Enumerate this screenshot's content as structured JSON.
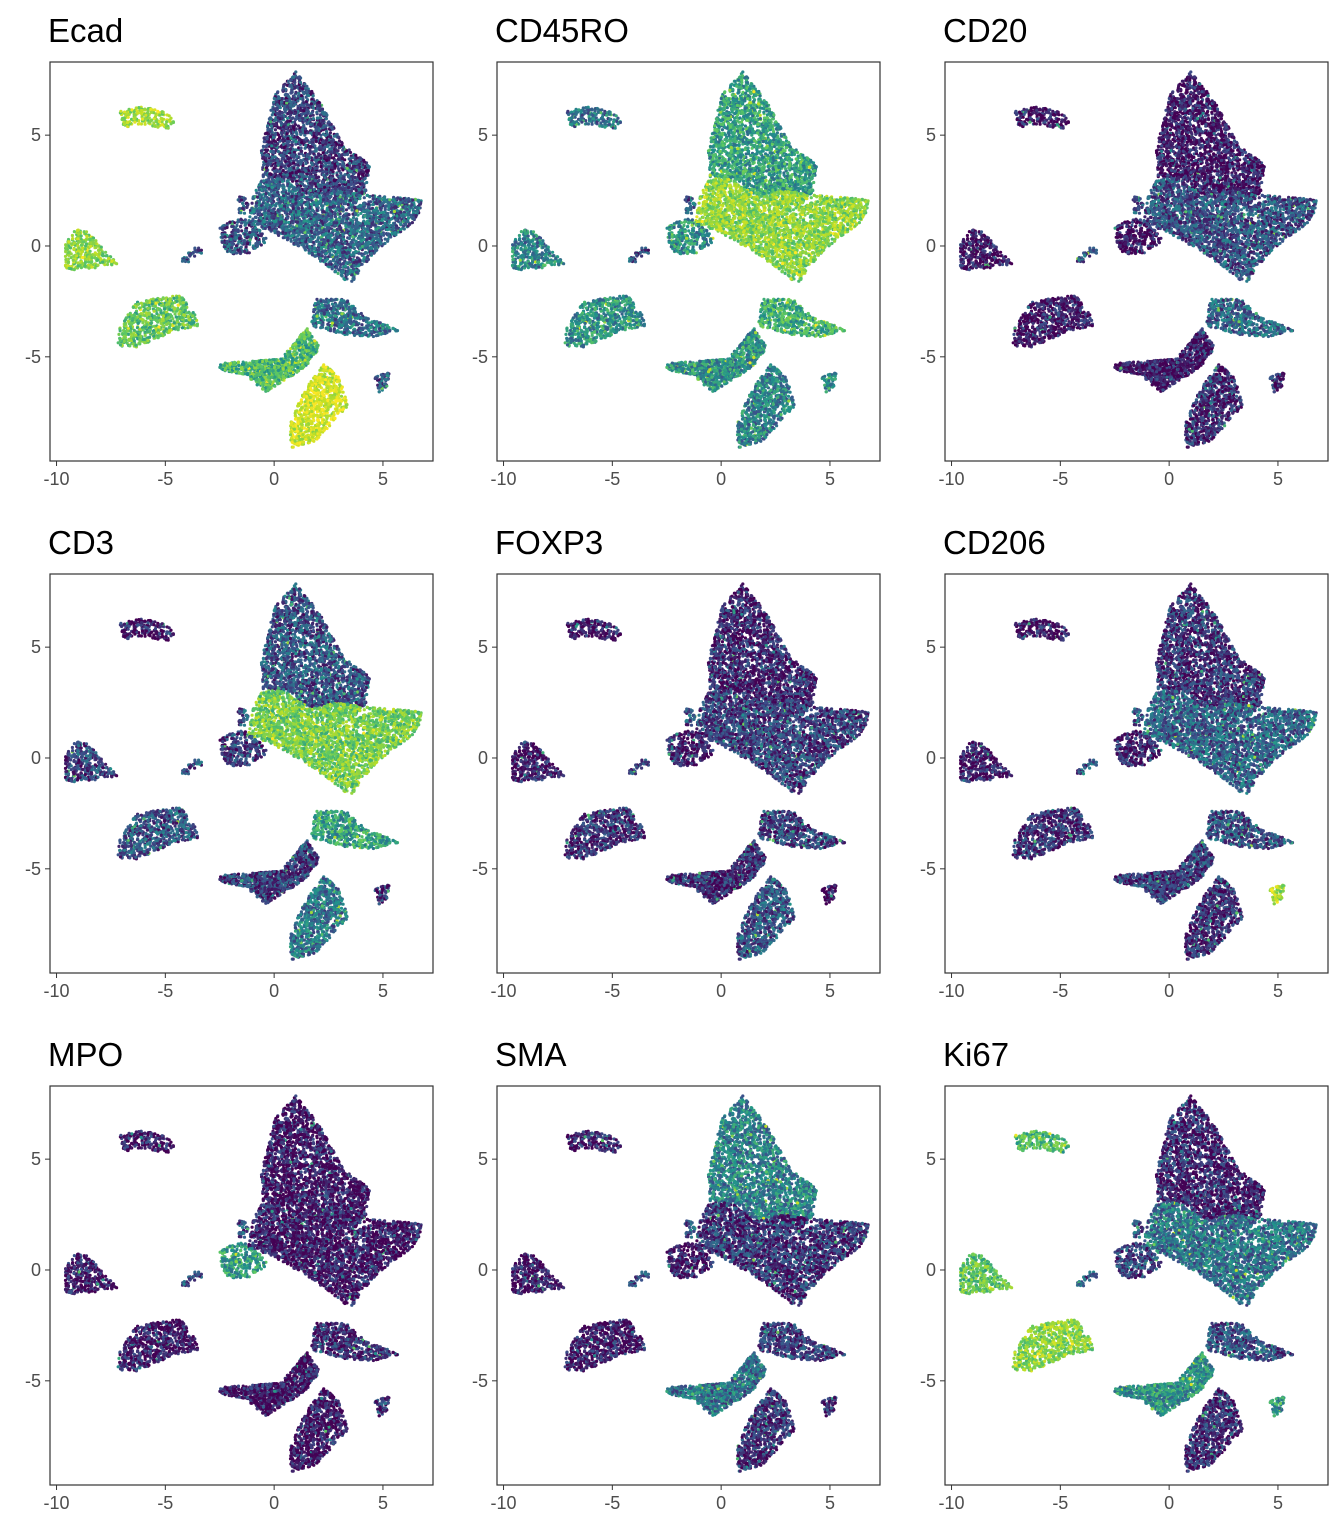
{
  "palette": {
    "viridis_stops": [
      "#440154",
      "#3b528b",
      "#21918c",
      "#5ec962",
      "#bddf26",
      "#fde725"
    ],
    "frame": "#333333",
    "tick_text": "#4d4d4d",
    "background": "#ffffff"
  },
  "chart_data": [
    {
      "type": "scatter",
      "title": "Ecad",
      "xlim": [
        -10.3,
        7.3
      ],
      "ylim": [
        -9.7,
        8.3
      ],
      "x_ticks": [
        "-10",
        "-5",
        "0",
        "5"
      ],
      "x_tick_values": [
        -10,
        -5,
        0,
        5
      ],
      "y_ticks": [
        "5",
        "0",
        "-5"
      ],
      "y_tick_values": [
        5,
        0,
        -5
      ],
      "xlabel": "",
      "ylabel": "",
      "grid": false,
      "legend": "none",
      "cluster_expression": {
        "c1": 0.75,
        "c2": 0.7,
        "c3": 0.6,
        "c4": 0.15,
        "c5": 0.25,
        "c6": 0.2,
        "c7": 0.3,
        "c8": 0.55,
        "c9": 0.85,
        "c10": 0.2
      }
    },
    {
      "type": "scatter",
      "title": "CD45RO",
      "xlim": [
        -10.3,
        7.3
      ],
      "ylim": [
        -9.7,
        8.3
      ],
      "x_ticks": [
        "-10",
        "-5",
        "0",
        "5"
      ],
      "x_tick_values": [
        -10,
        -5,
        0,
        5
      ],
      "y_ticks": [
        "5",
        "0",
        "-5"
      ],
      "y_tick_values": [
        5,
        0,
        -5
      ],
      "xlabel": "",
      "ylabel": "",
      "grid": false,
      "legend": "none",
      "cluster_expression": {
        "c1": 0.3,
        "c2": 0.35,
        "c3": 0.4,
        "c4": 0.45,
        "c5": 0.7,
        "c6": 0.4,
        "c7": 0.5,
        "c8": 0.4,
        "c9": 0.35,
        "c10": 0.35
      }
    },
    {
      "type": "scatter",
      "title": "CD20",
      "xlim": [
        -10.3,
        7.3
      ],
      "ylim": [
        -9.7,
        8.3
      ],
      "x_ticks": [
        "-10",
        "-5",
        "0",
        "5"
      ],
      "x_tick_values": [
        -10,
        -5,
        0,
        5
      ],
      "y_ticks": [
        "5",
        "0",
        "-5"
      ],
      "y_tick_values": [
        5,
        0,
        -5
      ],
      "xlabel": "",
      "ylabel": "",
      "grid": false,
      "legend": "none",
      "cluster_expression": {
        "c1": 0.05,
        "c2": 0.05,
        "c3": 0.05,
        "c4": 0.05,
        "c5": 0.2,
        "c6": 0.05,
        "c7": 0.25,
        "c8": 0.05,
        "c9": 0.1,
        "c10": 0.1
      }
    },
    {
      "type": "scatter",
      "title": "CD3",
      "xlim": [
        -10.3,
        7.3
      ],
      "ylim": [
        -9.7,
        8.3
      ],
      "x_ticks": [
        "-10",
        "-5",
        "0",
        "5"
      ],
      "x_tick_values": [
        -10,
        -5,
        0,
        5
      ],
      "y_ticks": [
        "5",
        "0",
        "-5"
      ],
      "y_tick_values": [
        5,
        0,
        -5
      ],
      "xlabel": "",
      "ylabel": "",
      "grid": false,
      "legend": "none",
      "cluster_expression": {
        "c1": 0.05,
        "c2": 0.15,
        "c3": 0.2,
        "c4": 0.2,
        "c5": 0.65,
        "c6": 0.15,
        "c7": 0.45,
        "c8": 0.15,
        "c9": 0.3,
        "c10": 0.1
      }
    },
    {
      "type": "scatter",
      "title": "FOXP3",
      "xlim": [
        -10.3,
        7.3
      ],
      "ylim": [
        -9.7,
        8.3
      ],
      "x_ticks": [
        "-10",
        "-5",
        "0",
        "5"
      ],
      "x_tick_values": [
        -10,
        -5,
        0,
        5
      ],
      "y_ticks": [
        "5",
        "0",
        "-5"
      ],
      "y_tick_values": [
        5,
        0,
        -5
      ],
      "xlabel": "",
      "ylabel": "",
      "grid": false,
      "legend": "none",
      "cluster_expression": {
        "c1": 0.05,
        "c2": 0.05,
        "c3": 0.12,
        "c4": 0.08,
        "c5": 0.15,
        "c6": 0.05,
        "c7": 0.15,
        "c8": 0.1,
        "c9": 0.2,
        "c10": 0.05
      }
    },
    {
      "type": "scatter",
      "title": "CD206",
      "xlim": [
        -10.3,
        7.3
      ],
      "ylim": [
        -9.7,
        8.3
      ],
      "x_ticks": [
        "-10",
        "-5",
        "0",
        "5"
      ],
      "x_tick_values": [
        -10,
        -5,
        0,
        5
      ],
      "y_ticks": [
        "5",
        "0",
        "-5"
      ],
      "y_tick_values": [
        5,
        0,
        -5
      ],
      "xlabel": "",
      "ylabel": "",
      "grid": false,
      "legend": "none",
      "cluster_expression": {
        "c1": 0.05,
        "c2": 0.05,
        "c3": 0.1,
        "c4": 0.12,
        "c5": 0.25,
        "c6": 0.08,
        "c7": 0.2,
        "c8": 0.15,
        "c9": 0.1,
        "c10": 0.75
      }
    },
    {
      "type": "scatter",
      "title": "MPO",
      "xlim": [
        -10.3,
        7.3
      ],
      "ylim": [
        -9.7,
        8.3
      ],
      "x_ticks": [
        "-10",
        "-5",
        "0",
        "5"
      ],
      "x_tick_values": [
        -10,
        -5,
        0,
        5
      ],
      "y_ticks": [
        "5",
        "0",
        "-5"
      ],
      "y_tick_values": [
        5,
        0,
        -5
      ],
      "xlabel": "",
      "ylabel": "",
      "grid": false,
      "legend": "none",
      "cluster_expression": {
        "c1": 0.05,
        "c2": 0.05,
        "c3": 0.05,
        "c4": 0.05,
        "c5": 0.05,
        "c6": 0.45,
        "c7": 0.1,
        "c8": 0.05,
        "c9": 0.05,
        "c10": 0.15
      }
    },
    {
      "type": "scatter",
      "title": "SMA",
      "xlim": [
        -10.3,
        7.3
      ],
      "ylim": [
        -9.7,
        8.3
      ],
      "x_ticks": [
        "-10",
        "-5",
        "0",
        "5"
      ],
      "x_tick_values": [
        -10,
        -5,
        0,
        5
      ],
      "y_ticks": [
        "5",
        "0",
        "-5"
      ],
      "y_tick_values": [
        5,
        0,
        -5
      ],
      "xlabel": "",
      "ylabel": "",
      "grid": false,
      "legend": "none",
      "cluster_expression": {
        "c1": 0.05,
        "c2": 0.05,
        "c3": 0.05,
        "c4": 0.35,
        "c5": 0.12,
        "c6": 0.05,
        "c7": 0.15,
        "c8": 0.3,
        "c9": 0.12,
        "c10": 0.1
      }
    },
    {
      "type": "scatter",
      "title": "Ki67",
      "xlim": [
        -10.3,
        7.3
      ],
      "ylim": [
        -9.7,
        8.3
      ],
      "x_ticks": [
        "-10",
        "-5",
        "0",
        "5"
      ],
      "x_tick_values": [
        -10,
        -5,
        0,
        5
      ],
      "y_ticks": [
        "5",
        "0",
        "-5"
      ],
      "y_tick_values": [
        5,
        0,
        -5
      ],
      "xlabel": "",
      "ylabel": "",
      "grid": false,
      "legend": "none",
      "cluster_expression": {
        "c1": 0.55,
        "c2": 0.6,
        "c3": 0.7,
        "c4": 0.08,
        "c5": 0.3,
        "c6": 0.15,
        "c7": 0.2,
        "c8": 0.4,
        "c9": 0.1,
        "c10": 0.4
      }
    }
  ]
}
